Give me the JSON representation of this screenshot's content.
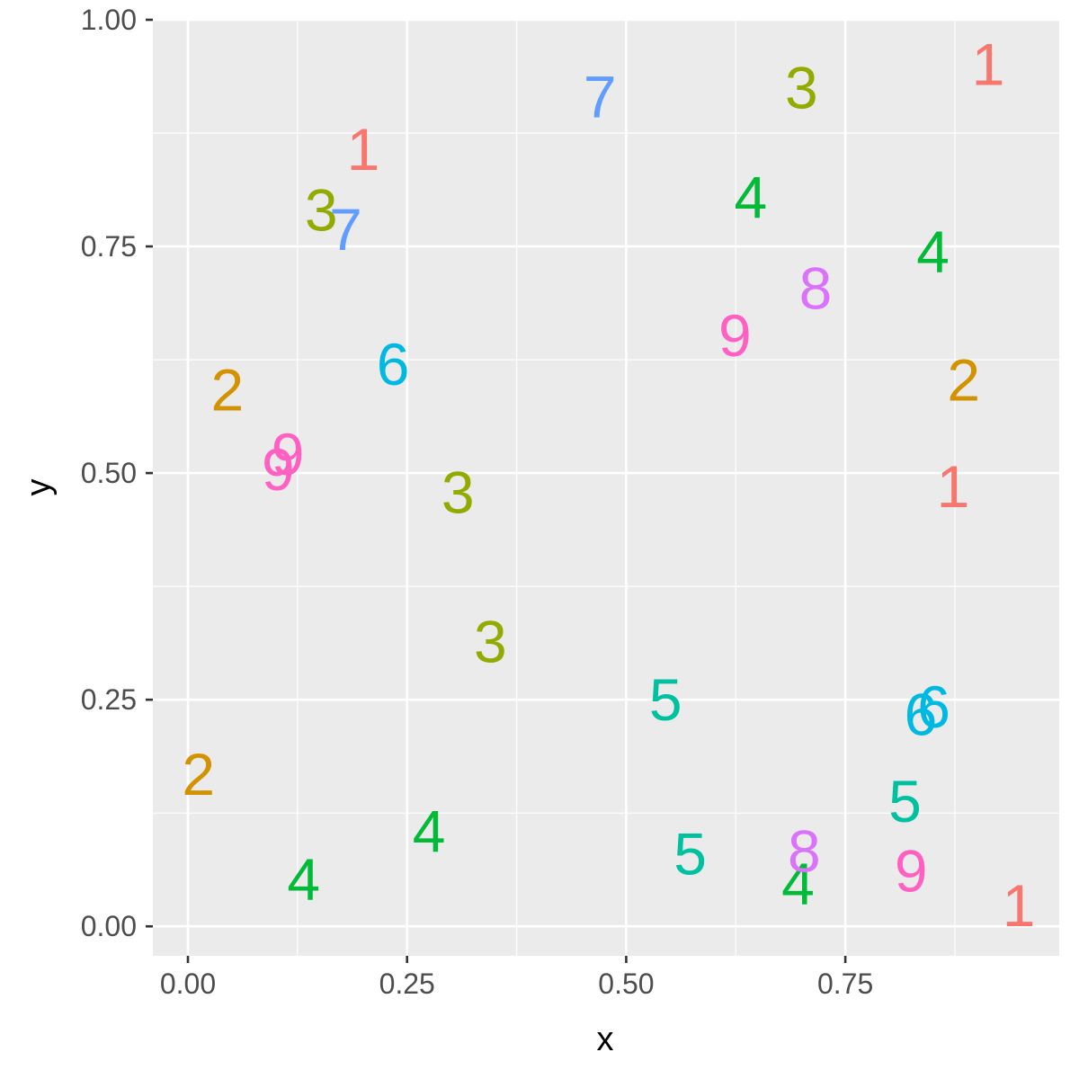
{
  "chart_data": {
    "type": "scatter",
    "title": "",
    "xlabel": "x",
    "ylabel": "y",
    "xlim": [
      -0.04,
      0.994
    ],
    "ylim": [
      -0.0325,
      1.0
    ],
    "x_ticks": [
      0.0,
      0.25,
      0.5,
      0.75
    ],
    "x_tick_labels": [
      "0.00",
      "0.25",
      "0.50",
      "0.75"
    ],
    "y_ticks": [
      0.0,
      0.25,
      0.5,
      0.75,
      1.0
    ],
    "y_tick_labels": [
      "0.00",
      "0.25",
      "0.50",
      "0.75",
      "1.00"
    ],
    "x_minor": [
      0.125,
      0.375,
      0.625,
      0.875
    ],
    "y_minor": [
      0.125,
      0.375,
      0.625,
      0.875
    ],
    "grid": true,
    "legend": "none",
    "colors": {
      "1": "#F8766D",
      "2": "#D39200",
      "3": "#93AA00",
      "4": "#00BA38",
      "5": "#00C19F",
      "6": "#00B9E3",
      "7": "#619CFF",
      "8": "#DB72FB",
      "9": "#FF61C3"
    },
    "points": [
      {
        "label": "1",
        "x": 0.913,
        "y": 0.951
      },
      {
        "label": "1",
        "x": 0.2,
        "y": 0.857
      },
      {
        "label": "1",
        "x": 0.873,
        "y": 0.485
      },
      {
        "label": "1",
        "x": 0.948,
        "y": 0.023
      },
      {
        "label": "2",
        "x": 0.045,
        "y": 0.592
      },
      {
        "label": "2",
        "x": 0.885,
        "y": 0.603
      },
      {
        "label": "2",
        "x": 0.012,
        "y": 0.168
      },
      {
        "label": "3",
        "x": 0.7,
        "y": 0.925
      },
      {
        "label": "3",
        "x": 0.152,
        "y": 0.79
      },
      {
        "label": "3",
        "x": 0.308,
        "y": 0.479
      },
      {
        "label": "3",
        "x": 0.345,
        "y": 0.314
      },
      {
        "label": "4",
        "x": 0.642,
        "y": 0.804
      },
      {
        "label": "4",
        "x": 0.85,
        "y": 0.744
      },
      {
        "label": "4",
        "x": 0.275,
        "y": 0.105
      },
      {
        "label": "4",
        "x": 0.132,
        "y": 0.052
      },
      {
        "label": "4",
        "x": 0.696,
        "y": 0.047
      },
      {
        "label": "5",
        "x": 0.545,
        "y": 0.25
      },
      {
        "label": "5",
        "x": 0.818,
        "y": 0.138
      },
      {
        "label": "5",
        "x": 0.573,
        "y": 0.08
      },
      {
        "label": "6",
        "x": 0.234,
        "y": 0.62
      },
      {
        "label": "6",
        "x": 0.851,
        "y": 0.242
      },
      {
        "label": "6",
        "x": 0.836,
        "y": 0.234
      },
      {
        "label": "7",
        "x": 0.47,
        "y": 0.915
      },
      {
        "label": "7",
        "x": 0.18,
        "y": 0.769
      },
      {
        "label": "8",
        "x": 0.716,
        "y": 0.704
      },
      {
        "label": "8",
        "x": 0.703,
        "y": 0.083
      },
      {
        "label": "9",
        "x": 0.624,
        "y": 0.652
      },
      {
        "label": "9",
        "x": 0.114,
        "y": 0.521
      },
      {
        "label": "9",
        "x": 0.103,
        "y": 0.504
      },
      {
        "label": "9",
        "x": 0.825,
        "y": 0.061
      }
    ]
  }
}
